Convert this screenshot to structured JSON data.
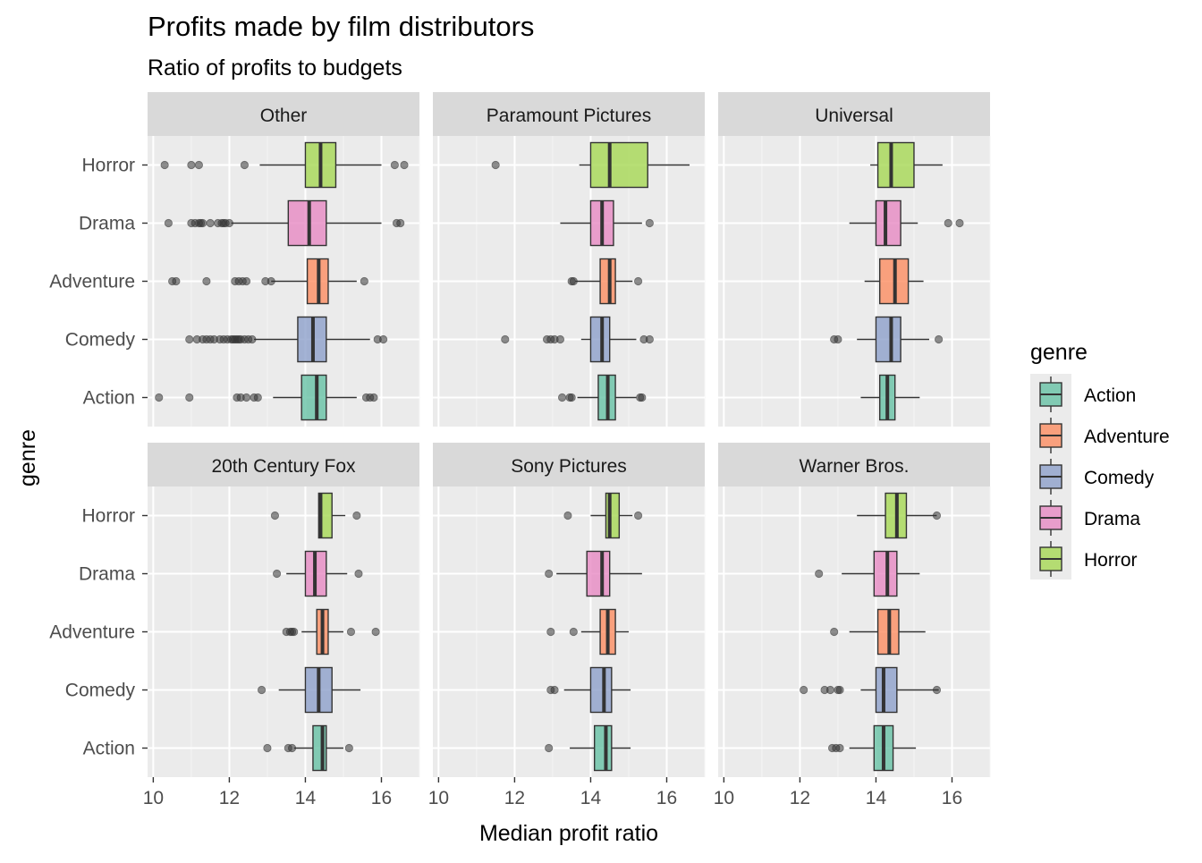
{
  "chart_data": {
    "type": "boxplot",
    "title": "Profits made by film distributors",
    "subtitle": "Ratio of profits to budgets",
    "xlabel": "Median profit ratio",
    "ylabel": "genre",
    "xlim": [
      9.85,
      17.0
    ],
    "x_ticks": [
      10,
      12,
      14,
      16
    ],
    "x_tick_labels": [
      "10",
      "12",
      "14",
      "16"
    ],
    "y_categories": [
      "Horror",
      "Drama",
      "Adventure",
      "Comedy",
      "Action"
    ],
    "legend": {
      "title": "genre",
      "placement": "right",
      "items": [
        {
          "label": "Action",
          "color": "#66c2a5"
        },
        {
          "label": "Adventure",
          "color": "#fc8d62"
        },
        {
          "label": "Comedy",
          "color": "#8da0cb"
        },
        {
          "label": "Drama",
          "color": "#e78ac3"
        },
        {
          "label": "Horror",
          "color": "#a6d854"
        }
      ]
    },
    "genre_colors": {
      "Action": "#66c2a5",
      "Adventure": "#fc8d62",
      "Comedy": "#8da0cb",
      "Drama": "#e78ac3",
      "Horror": "#a6d854"
    },
    "panels": [
      {
        "name": "Other",
        "boxes": [
          {
            "genre": "Horror",
            "whisker_low": 12.8,
            "q1": 14.0,
            "median": 14.4,
            "q3": 14.8,
            "whisker_high": 16.0,
            "outliers": [
              10.3,
              11.0,
              11.2,
              12.4,
              16.35,
              16.6
            ]
          },
          {
            "genre": "Drama",
            "whisker_low": 12.05,
            "q1": 13.55,
            "median": 14.1,
            "q3": 14.55,
            "whisker_high": 16.0,
            "outliers": [
              10.4,
              11.0,
              11.1,
              11.2,
              11.25,
              11.3,
              11.5,
              11.7,
              11.8,
              11.85,
              11.9,
              12.0,
              16.4,
              16.5
            ]
          },
          {
            "genre": "Adventure",
            "whisker_low": 13.1,
            "q1": 14.05,
            "median": 14.35,
            "q3": 14.6,
            "whisker_high": 15.35,
            "outliers": [
              10.5,
              10.6,
              11.4,
              12.15,
              12.25,
              12.35,
              12.45,
              12.95,
              13.1,
              15.55
            ]
          },
          {
            "genre": "Comedy",
            "whisker_low": 12.65,
            "q1": 13.8,
            "median": 14.2,
            "q3": 14.55,
            "whisker_high": 15.7,
            "outliers": [
              10.95,
              11.15,
              11.3,
              11.4,
              11.5,
              11.6,
              11.75,
              11.85,
              11.95,
              12.05,
              12.1,
              12.15,
              12.2,
              12.25,
              12.3,
              12.4,
              12.5,
              12.6,
              15.9,
              16.05
            ]
          },
          {
            "genre": "Action",
            "whisker_low": 13.15,
            "q1": 13.9,
            "median": 14.3,
            "q3": 14.55,
            "whisker_high": 15.35,
            "outliers": [
              10.15,
              10.95,
              12.2,
              12.3,
              12.45,
              12.65,
              12.75,
              15.6,
              15.7,
              15.8
            ]
          }
        ]
      },
      {
        "name": "Paramount Pictures",
        "boxes": [
          {
            "genre": "Horror",
            "whisker_low": 13.7,
            "q1": 14.0,
            "median": 14.5,
            "q3": 15.5,
            "whisker_high": 16.6,
            "outliers": [
              11.5
            ]
          },
          {
            "genre": "Drama",
            "whisker_low": 13.2,
            "q1": 14.0,
            "median": 14.3,
            "q3": 14.6,
            "whisker_high": 15.35,
            "outliers": [
              15.55
            ]
          },
          {
            "genre": "Adventure",
            "whisker_low": 13.6,
            "q1": 14.25,
            "median": 14.5,
            "q3": 14.65,
            "whisker_high": 15.1,
            "outliers": [
              13.5,
              13.55,
              15.25
            ]
          },
          {
            "genre": "Comedy",
            "whisker_low": 13.75,
            "q1": 14.0,
            "median": 14.3,
            "q3": 14.5,
            "whisker_high": 15.2,
            "outliers": [
              11.75,
              12.85,
              12.95,
              13.05,
              13.2,
              15.4,
              15.55
            ]
          },
          {
            "genre": "Action",
            "whisker_low": 13.65,
            "q1": 14.2,
            "median": 14.45,
            "q3": 14.65,
            "whisker_high": 15.2,
            "outliers": [
              13.25,
              13.45,
              13.5,
              15.3,
              15.35
            ]
          }
        ]
      },
      {
        "name": "Universal",
        "boxes": [
          {
            "genre": "Horror",
            "whisker_low": 13.85,
            "q1": 14.05,
            "median": 14.4,
            "q3": 15.0,
            "whisker_high": 15.75,
            "outliers": []
          },
          {
            "genre": "Drama",
            "whisker_low": 13.3,
            "q1": 14.0,
            "median": 14.25,
            "q3": 14.65,
            "whisker_high": 15.1,
            "outliers": [
              15.9,
              16.2
            ]
          },
          {
            "genre": "Adventure",
            "whisker_low": 13.7,
            "q1": 14.1,
            "median": 14.5,
            "q3": 14.85,
            "whisker_high": 15.25,
            "outliers": []
          },
          {
            "genre": "Comedy",
            "whisker_low": 13.5,
            "q1": 14.0,
            "median": 14.4,
            "q3": 14.65,
            "whisker_high": 15.4,
            "outliers": [
              12.9,
              13.0,
              15.65
            ]
          },
          {
            "genre": "Action",
            "whisker_low": 13.6,
            "q1": 14.1,
            "median": 14.3,
            "q3": 14.5,
            "whisker_high": 15.15,
            "outliers": []
          }
        ]
      },
      {
        "name": "20th Century Fox",
        "boxes": [
          {
            "genre": "Horror",
            "whisker_low": 14.35,
            "q1": 14.35,
            "median": 14.4,
            "q3": 14.7,
            "whisker_high": 15.05,
            "outliers": [
              13.2,
              15.35
            ]
          },
          {
            "genre": "Drama",
            "whisker_low": 13.5,
            "q1": 14.0,
            "median": 14.25,
            "q3": 14.55,
            "whisker_high": 15.1,
            "outliers": [
              13.25,
              15.4
            ]
          },
          {
            "genre": "Adventure",
            "whisker_low": 13.9,
            "q1": 14.3,
            "median": 14.45,
            "q3": 14.6,
            "whisker_high": 15.0,
            "outliers": [
              13.5,
              13.6,
              13.65,
              13.7,
              15.2,
              15.85
            ]
          },
          {
            "genre": "Comedy",
            "whisker_low": 13.3,
            "q1": 14.0,
            "median": 14.35,
            "q3": 14.7,
            "whisker_high": 15.45,
            "outliers": [
              12.85
            ]
          },
          {
            "genre": "Action",
            "whisker_low": 13.7,
            "q1": 14.2,
            "median": 14.45,
            "q3": 14.55,
            "whisker_high": 15.0,
            "outliers": [
              13.0,
              13.55,
              13.65,
              15.15
            ]
          }
        ]
      },
      {
        "name": "Sony Pictures",
        "boxes": [
          {
            "genre": "Horror",
            "whisker_low": 14.0,
            "q1": 14.4,
            "median": 14.5,
            "q3": 14.75,
            "whisker_high": 15.1,
            "outliers": [
              13.4,
              15.25
            ]
          },
          {
            "genre": "Drama",
            "whisker_low": 13.1,
            "q1": 13.9,
            "median": 14.3,
            "q3": 14.5,
            "whisker_high": 15.35,
            "outliers": [
              12.9
            ]
          },
          {
            "genre": "Adventure",
            "whisker_low": 13.75,
            "q1": 14.25,
            "median": 14.45,
            "q3": 14.65,
            "whisker_high": 15.0,
            "outliers": [
              12.95,
              13.55
            ]
          },
          {
            "genre": "Comedy",
            "whisker_low": 13.3,
            "q1": 14.0,
            "median": 14.35,
            "q3": 14.55,
            "whisker_high": 15.05,
            "outliers": [
              12.95,
              13.05
            ]
          },
          {
            "genre": "Action",
            "whisker_low": 13.45,
            "q1": 14.1,
            "median": 14.4,
            "q3": 14.55,
            "whisker_high": 15.05,
            "outliers": [
              12.9
            ]
          }
        ]
      },
      {
        "name": "Warner Bros.",
        "boxes": [
          {
            "genre": "Horror",
            "whisker_low": 13.5,
            "q1": 14.25,
            "median": 14.55,
            "q3": 14.8,
            "whisker_high": 15.6,
            "outliers": [
              15.6
            ]
          },
          {
            "genre": "Drama",
            "whisker_low": 13.1,
            "q1": 13.95,
            "median": 14.3,
            "q3": 14.55,
            "whisker_high": 15.15,
            "outliers": [
              12.5
            ]
          },
          {
            "genre": "Adventure",
            "whisker_low": 13.3,
            "q1": 14.05,
            "median": 14.35,
            "q3": 14.6,
            "whisker_high": 15.3,
            "outliers": [
              12.9
            ]
          },
          {
            "genre": "Comedy",
            "whisker_low": 13.6,
            "q1": 14.0,
            "median": 14.2,
            "q3": 14.55,
            "whisker_high": 15.65,
            "outliers": [
              12.1,
              12.65,
              12.8,
              13.0,
              13.05,
              15.6
            ]
          },
          {
            "genre": "Action",
            "whisker_low": 13.3,
            "q1": 13.95,
            "median": 14.2,
            "q3": 14.45,
            "whisker_high": 15.05,
            "outliers": [
              12.85,
              12.95,
              13.05
            ]
          }
        ]
      }
    ]
  }
}
